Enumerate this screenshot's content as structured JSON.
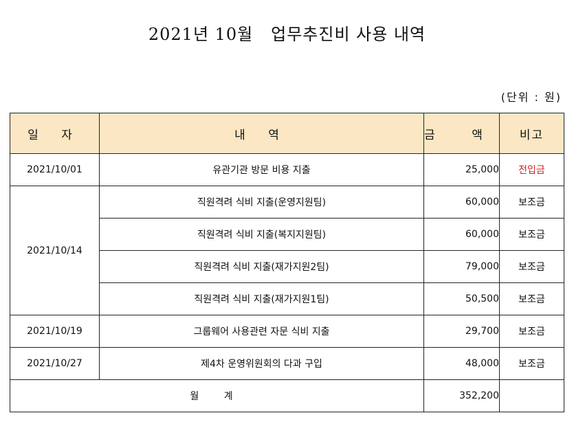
{
  "title": "2021년 10월   업무추진비 사용 내역",
  "unit_note": "(단위 : 원)",
  "colors": {
    "header_bg": "#fbe7c4",
    "highlight_text": "#d62020",
    "border": "#222222"
  },
  "headers": {
    "date": "일 자",
    "description": "내 역",
    "amount": "금 액",
    "note": "비고"
  },
  "rows": [
    {
      "date": "2021/10/01",
      "description": "유관기관 방문 비용 지출",
      "amount": "25,000",
      "note": "전입금"
    },
    {
      "date": "2021/10/14",
      "description": "직원격려 식비 지출(운영지원팀)",
      "amount": "60,000",
      "note": "보조금"
    },
    {
      "date": "",
      "description": "직원격려 식비 지출(복지지원팀)",
      "amount": "60,000",
      "note": "보조금"
    },
    {
      "date": "",
      "description": "직원격려 식비 지출(재가지원2팀)",
      "amount": "79,000",
      "note": "보조금"
    },
    {
      "date": "",
      "description": "직원격려 식비 지출(재가지원1팀)",
      "amount": "50,500",
      "note": "보조금"
    },
    {
      "date": "2021/10/19",
      "description": "그룹웨어 사용관련 자문 식비 지출",
      "amount": "29,700",
      "note": "보조금"
    },
    {
      "date": "2021/10/27",
      "description": "제4차 운영위원회의 다과 구입",
      "amount": "48,000",
      "note": "보조금"
    }
  ],
  "total": {
    "label": "월 계",
    "amount": "352,200"
  }
}
